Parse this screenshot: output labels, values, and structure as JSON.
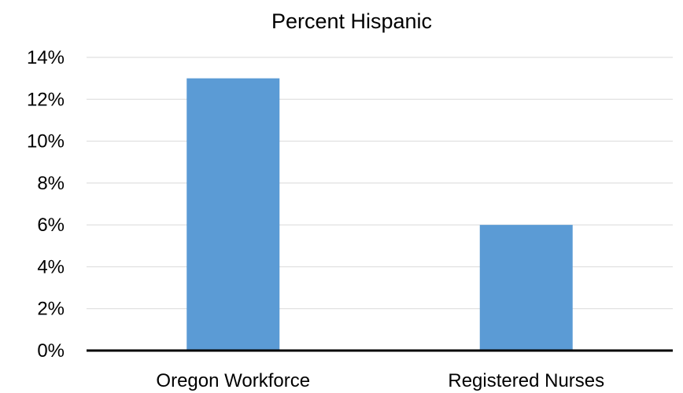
{
  "chart_data": {
    "type": "bar",
    "title": "Percent Hispanic",
    "categories": [
      "Oregon Workforce",
      "Registered Nurses"
    ],
    "values": [
      13,
      6
    ],
    "value_format": "percent",
    "ylim": [
      0,
      14
    ],
    "yticks": [
      0,
      2,
      4,
      6,
      8,
      10,
      12,
      14
    ],
    "ytick_labels": [
      "0%",
      "2%",
      "4%",
      "6%",
      "8%",
      "10%",
      "12%",
      "14%"
    ],
    "grid": true,
    "legend": "none",
    "colors": {
      "bar": "#5b9bd5",
      "grid": "#d9d9d9",
      "axis": "#000000"
    }
  }
}
